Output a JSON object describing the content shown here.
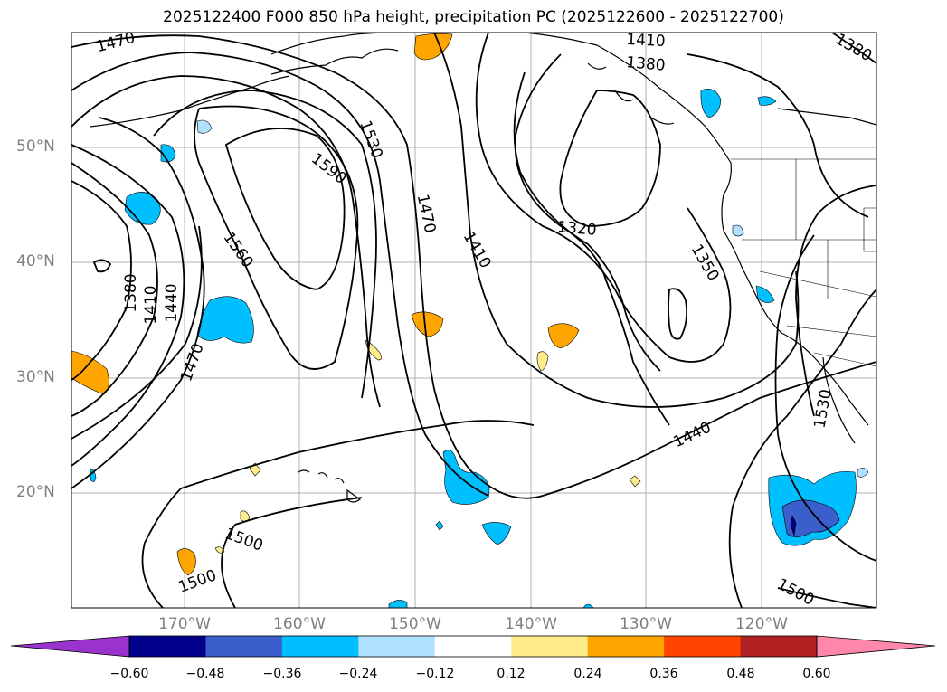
{
  "title": "2025122400 F000 850 hPa height, precipitation PC (2025122600 - 2025122700)",
  "map": {
    "lat_labels": [
      "50°N",
      "40°N",
      "30°N",
      "20°N"
    ],
    "lon_labels": [
      "170°W",
      "160°W",
      "150°W",
      "140°W",
      "130°W",
      "120°W"
    ],
    "contour_labels": [
      {
        "text": "1470",
        "rot": -15
      },
      {
        "text": "1410",
        "rot": 3
      },
      {
        "text": "1380",
        "rot": 5
      },
      {
        "text": "1380",
        "rot": 30
      },
      {
        "text": "1530",
        "rot": 70
      },
      {
        "text": "1590",
        "rot": 38
      },
      {
        "text": "1470",
        "rot": 78
      },
      {
        "text": "1410",
        "rot": 60
      },
      {
        "text": "1320",
        "rot": 5
      },
      {
        "text": "1560",
        "rot": 55
      },
      {
        "text": "1350",
        "rot": 60
      },
      {
        "text": "1380",
        "rot": -90
      },
      {
        "text": "1410",
        "rot": -90
      },
      {
        "text": "1440",
        "rot": -90
      },
      {
        "text": "1470",
        "rot": -70
      },
      {
        "text": "1440",
        "rot": -25
      },
      {
        "text": "1530",
        "rot": -80
      },
      {
        "text": "1500",
        "rot": 20
      },
      {
        "text": "1500",
        "rot": -20
      },
      {
        "text": "1500",
        "rot": 28
      }
    ]
  },
  "colorbar": {
    "ticks": [
      "−0.60",
      "−0.48",
      "−0.36",
      "−0.24",
      "−0.12",
      "0.12",
      "0.24",
      "0.36",
      "0.48",
      "0.60"
    ],
    "colors": [
      "#9a32cd",
      "#00008b",
      "#3a5fcd",
      "#00bfff",
      "#b0e2ff",
      "#ffffff",
      "#ffec8b",
      "#ffa500",
      "#ff4500",
      "#b22222",
      "#ff88aa"
    ]
  }
}
